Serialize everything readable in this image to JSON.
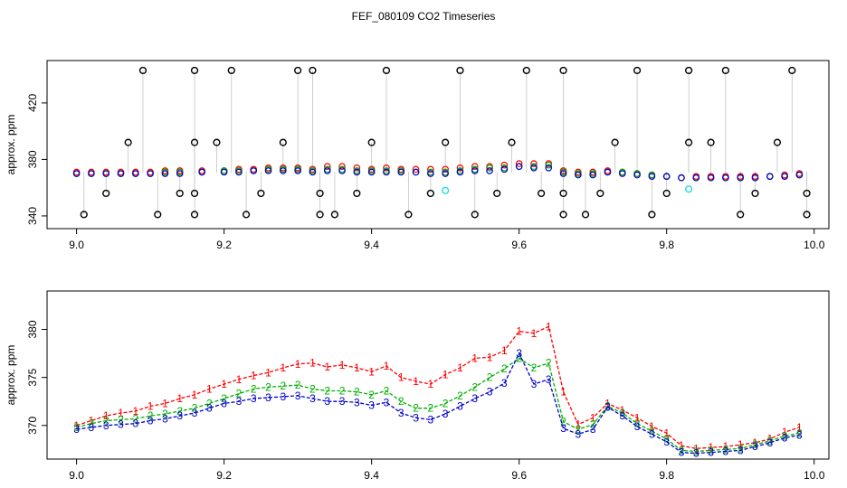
{
  "title": "FEF_080109  CO2 Timeseries",
  "colors": {
    "frame": "#000000",
    "outlier": "#000000",
    "vline": "#888888",
    "series1": "#ff0000",
    "series2": "#00b000",
    "series3": "#0000cc",
    "cyan": "#22dddd"
  },
  "chart_data": [
    {
      "type": "scatter",
      "ylabel": "approx. ppm",
      "xlim": [
        8.96,
        10.02
      ],
      "ylim": [
        331,
        450
      ],
      "x_ticks": [
        "9.0",
        "9.2",
        "9.4",
        "9.6",
        "9.8",
        "10.0"
      ],
      "y_ticks": [
        "340",
        "380",
        "420"
      ],
      "x_tick_values": [
        9.0,
        9.2,
        9.4,
        9.6,
        9.8,
        10.0
      ],
      "y_tick_values": [
        340,
        380,
        420
      ],
      "series": [
        {
          "color_key": "series1",
          "x": [
            9.0,
            9.02,
            9.04,
            9.06,
            9.08,
            9.1,
            9.12,
            9.14,
            9.17,
            9.2,
            9.22,
            9.24,
            9.26,
            9.28,
            9.3,
            9.32,
            9.34,
            9.36,
            9.38,
            9.4,
            9.42,
            9.44,
            9.46,
            9.48,
            9.5,
            9.52,
            9.54,
            9.56,
            9.58,
            9.6,
            9.62,
            9.64,
            9.66,
            9.68,
            9.7,
            9.72,
            9.74,
            9.76,
            9.78,
            9.8,
            9.82,
            9.84,
            9.86,
            9.88,
            9.9,
            9.92,
            9.94,
            9.96,
            9.98
          ],
          "y": [
            371,
            371,
            371,
            371,
            371,
            371,
            372,
            372,
            372,
            372,
            373,
            373,
            374,
            374,
            374,
            373,
            375,
            375,
            374,
            373,
            374,
            373,
            373,
            373,
            373,
            374,
            375,
            375,
            376,
            377,
            377,
            377,
            372,
            371,
            371,
            372,
            371,
            370,
            369,
            368,
            367,
            368,
            368,
            368,
            368,
            368,
            368,
            369,
            370
          ]
        },
        {
          "color_key": "series2",
          "x": [
            9.0,
            9.02,
            9.04,
            9.06,
            9.08,
            9.1,
            9.12,
            9.14,
            9.17,
            9.2,
            9.22,
            9.24,
            9.26,
            9.28,
            9.3,
            9.32,
            9.34,
            9.36,
            9.38,
            9.4,
            9.42,
            9.44,
            9.46,
            9.48,
            9.5,
            9.52,
            9.54,
            9.56,
            9.58,
            9.6,
            9.62,
            9.64,
            9.66,
            9.68,
            9.7,
            9.72,
            9.74,
            9.76,
            9.78,
            9.8,
            9.82,
            9.84,
            9.86,
            9.88,
            9.9,
            9.92,
            9.94,
            9.96,
            9.98
          ],
          "y": [
            370,
            370,
            370,
            370,
            370,
            370,
            371,
            371,
            371,
            372,
            372,
            372,
            373,
            373,
            373,
            372,
            373,
            373,
            372,
            372,
            372,
            372,
            371,
            371,
            371,
            372,
            373,
            374,
            374,
            375,
            375,
            376,
            371,
            370,
            370,
            371,
            371,
            370,
            369,
            368,
            367,
            367,
            367,
            367,
            367,
            367,
            368,
            368,
            369
          ]
        },
        {
          "color_key": "series3",
          "x": [
            9.0,
            9.02,
            9.04,
            9.06,
            9.08,
            9.1,
            9.12,
            9.14,
            9.17,
            9.2,
            9.22,
            9.24,
            9.26,
            9.28,
            9.3,
            9.32,
            9.34,
            9.36,
            9.38,
            9.4,
            9.42,
            9.44,
            9.46,
            9.48,
            9.5,
            9.52,
            9.54,
            9.56,
            9.58,
            9.6,
            9.62,
            9.64,
            9.66,
            9.68,
            9.7,
            9.72,
            9.74,
            9.76,
            9.78,
            9.8,
            9.82,
            9.84,
            9.86,
            9.88,
            9.9,
            9.92,
            9.94,
            9.96,
            9.98
          ],
          "y": [
            370,
            370,
            370,
            370,
            370,
            370,
            370,
            370,
            371,
            371,
            371,
            372,
            372,
            372,
            372,
            371,
            372,
            372,
            371,
            371,
            371,
            371,
            371,
            370,
            370,
            371,
            372,
            372,
            373,
            375,
            374,
            374,
            370,
            369,
            369,
            371,
            370,
            369,
            368,
            368,
            367,
            367,
            367,
            367,
            367,
            367,
            368,
            368,
            369
          ]
        }
      ],
      "outliers": {
        "color_key": "outlier",
        "x": [
          9.01,
          9.04,
          9.07,
          9.09,
          9.11,
          9.14,
          9.16,
          9.16,
          9.16,
          9.16,
          9.19,
          9.21,
          9.23,
          9.25,
          9.28,
          9.3,
          9.32,
          9.33,
          9.33,
          9.35,
          9.38,
          9.4,
          9.42,
          9.45,
          9.48,
          9.5,
          9.52,
          9.54,
          9.57,
          9.59,
          9.61,
          9.63,
          9.66,
          9.66,
          9.66,
          9.69,
          9.71,
          9.73,
          9.76,
          9.78,
          9.8,
          9.83,
          9.83,
          9.86,
          9.88,
          9.9,
          9.92,
          9.95,
          9.97,
          9.99,
          9.99
        ],
        "y": [
          341,
          356,
          392,
          443,
          341,
          356,
          392,
          443,
          356,
          341,
          392,
          443,
          341,
          356,
          392,
          443,
          443,
          356,
          341,
          341,
          356,
          392,
          443,
          341,
          356,
          392,
          443,
          341,
          356,
          392,
          443,
          356,
          443,
          356,
          341,
          341,
          356,
          392,
          443,
          341,
          356,
          392,
          443,
          392,
          443,
          341,
          356,
          392,
          443,
          356,
          341
        ]
      },
      "cyan_points": {
        "color_key": "cyan",
        "x": [
          9.5,
          9.83
        ],
        "y": [
          358,
          359
        ]
      }
    },
    {
      "type": "line",
      "ylabel": "approx. ppm",
      "xlim": [
        8.96,
        10.02
      ],
      "ylim": [
        366.5,
        384
      ],
      "x_ticks": [
        "9.0",
        "9.2",
        "9.4",
        "9.6",
        "9.8",
        "10.0"
      ],
      "y_ticks": [
        "370",
        "375",
        "380"
      ],
      "x_tick_values": [
        9.0,
        9.2,
        9.4,
        9.6,
        9.8,
        10.0
      ],
      "y_tick_values": [
        370,
        375,
        380
      ],
      "series": [
        {
          "marker": "1",
          "color_key": "series1",
          "x": [
            9.0,
            9.02,
            9.04,
            9.06,
            9.08,
            9.1,
            9.12,
            9.14,
            9.16,
            9.18,
            9.2,
            9.22,
            9.24,
            9.26,
            9.28,
            9.3,
            9.32,
            9.34,
            9.36,
            9.38,
            9.4,
            9.42,
            9.44,
            9.46,
            9.48,
            9.5,
            9.52,
            9.54,
            9.56,
            9.58,
            9.6,
            9.62,
            9.64,
            9.66,
            9.68,
            9.7,
            9.72,
            9.74,
            9.76,
            9.78,
            9.8,
            9.82,
            9.84,
            9.86,
            9.88,
            9.9,
            9.92,
            9.94,
            9.96,
            9.98
          ],
          "y": [
            370.0,
            370.5,
            371.0,
            371.3,
            371.5,
            372.0,
            372.3,
            372.8,
            373.2,
            373.8,
            374.3,
            374.8,
            375.2,
            375.5,
            376.0,
            376.4,
            376.5,
            376.1,
            376.3,
            376.0,
            375.6,
            376.2,
            375.0,
            374.6,
            374.3,
            375.3,
            376.0,
            377.0,
            377.1,
            377.8,
            379.8,
            379.6,
            380.3,
            373.5,
            370.1,
            370.8,
            372.3,
            371.6,
            370.8,
            369.9,
            369.2,
            367.9,
            367.6,
            367.7,
            367.8,
            368.0,
            368.2,
            368.6,
            369.3,
            369.8
          ]
        },
        {
          "marker": "2",
          "color_key": "series2",
          "x": [
            9.0,
            9.02,
            9.04,
            9.06,
            9.08,
            9.1,
            9.12,
            9.14,
            9.16,
            9.18,
            9.2,
            9.22,
            9.24,
            9.26,
            9.28,
            9.3,
            9.32,
            9.34,
            9.36,
            9.38,
            9.4,
            9.42,
            9.44,
            9.46,
            9.48,
            9.5,
            9.52,
            9.54,
            9.56,
            9.58,
            9.6,
            9.62,
            9.64,
            9.66,
            9.68,
            9.7,
            9.72,
            9.74,
            9.76,
            9.78,
            9.8,
            9.82,
            9.84,
            9.86,
            9.88,
            9.9,
            9.92,
            9.94,
            9.96,
            9.98
          ],
          "y": [
            369.8,
            370.2,
            370.5,
            370.6,
            370.7,
            371.0,
            371.2,
            371.5,
            371.8,
            372.3,
            372.8,
            373.3,
            373.8,
            374.0,
            374.1,
            374.2,
            373.8,
            373.6,
            373.6,
            373.5,
            373.2,
            373.6,
            372.5,
            371.8,
            371.8,
            372.3,
            373.1,
            374.0,
            375.0,
            375.9,
            377.0,
            376.0,
            376.5,
            370.4,
            369.6,
            370.1,
            372.0,
            371.3,
            370.2,
            369.4,
            368.6,
            367.4,
            367.3,
            367.4,
            367.5,
            367.6,
            368.0,
            368.4,
            368.9,
            369.2
          ]
        },
        {
          "marker": "3",
          "color_key": "series3",
          "x": [
            9.0,
            9.02,
            9.04,
            9.06,
            9.08,
            9.1,
            9.12,
            9.14,
            9.16,
            9.18,
            9.2,
            9.22,
            9.24,
            9.26,
            9.28,
            9.3,
            9.32,
            9.34,
            9.36,
            9.38,
            9.4,
            9.42,
            9.44,
            9.46,
            9.48,
            9.5,
            9.52,
            9.54,
            9.56,
            9.58,
            9.6,
            9.62,
            9.64,
            9.66,
            9.68,
            9.7,
            9.72,
            9.74,
            9.76,
            9.78,
            9.8,
            9.82,
            9.84,
            9.86,
            9.88,
            9.9,
            9.92,
            9.94,
            9.96,
            9.98
          ],
          "y": [
            369.6,
            369.8,
            370.0,
            370.1,
            370.2,
            370.5,
            370.7,
            371.0,
            371.3,
            371.8,
            372.3,
            372.5,
            372.8,
            372.9,
            373.0,
            373.1,
            372.8,
            372.5,
            372.5,
            372.4,
            372.1,
            372.4,
            371.3,
            370.8,
            370.6,
            371.2,
            372.0,
            372.8,
            373.5,
            374.4,
            377.5,
            374.3,
            374.8,
            369.7,
            369.1,
            369.6,
            371.9,
            371.0,
            369.9,
            369.1,
            368.3,
            367.2,
            367.1,
            367.2,
            367.3,
            367.4,
            367.8,
            368.2,
            368.7,
            369.0
          ]
        }
      ]
    }
  ]
}
